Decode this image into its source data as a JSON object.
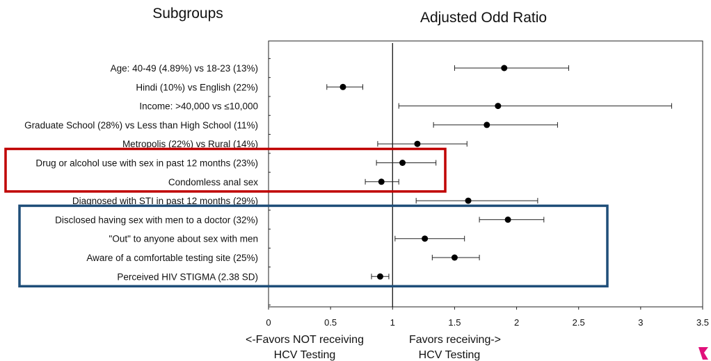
{
  "headings": {
    "left": "Subgroups",
    "right": "Adjusted Odd Ratio"
  },
  "favors": {
    "left_line1": "<-Favors NOT receiving",
    "left_line2": "HCV Testing",
    "right_line1": "Favors receiving->",
    "right_line2": "HCV Testing"
  },
  "colors": {
    "red_box": "#c00000",
    "blue_box": "#1f4e79",
    "corner_mark": "#e0107a"
  },
  "chart_data": {
    "type": "forest",
    "title": "Adjusted Odd Ratio",
    "xlim": [
      0,
      3.5
    ],
    "x_ticks": [
      "0",
      "0.5",
      "1",
      "1.5",
      "2",
      "2.5",
      "3",
      "3.5"
    ],
    "x_tick_values": [
      0,
      0.5,
      1,
      1.5,
      2,
      2.5,
      3,
      3.5
    ],
    "reference_line": 1,
    "rows": [
      {
        "label": "Age: 40-49 (4.89%) vs 18-23  (13%)",
        "or": 1.9,
        "lower": 1.5,
        "upper": 2.42
      },
      {
        "label": "Hindi (10%) vs English (22%)",
        "or": 0.6,
        "lower": 0.47,
        "upper": 0.76
      },
      {
        "label": "Income: >40,000 vs ≤10,000",
        "or": 1.85,
        "lower": 1.05,
        "upper": 3.25
      },
      {
        "label": "Graduate School (28%) vs Less than High School (11%)",
        "or": 1.76,
        "lower": 1.33,
        "upper": 2.33
      },
      {
        "label": "Metropolis (22%) vs Rural (14%)",
        "or": 1.2,
        "lower": 0.88,
        "upper": 1.6
      },
      {
        "label": "Drug or alcohol use with sex in past 12 months (23%)",
        "or": 1.08,
        "lower": 0.87,
        "upper": 1.35
      },
      {
        "label": "Condomless anal sex",
        "or": 0.91,
        "lower": 0.78,
        "upper": 1.05
      },
      {
        "label": "Diagnosed with STI in past 12 months (29%)",
        "or": 1.61,
        "lower": 1.19,
        "upper": 2.17
      },
      {
        "label": "Disclosed having sex with men to a doctor (32%)",
        "or": 1.93,
        "lower": 1.7,
        "upper": 2.22
      },
      {
        "label": "\"Out\" to anyone about sex with men",
        "or": 1.26,
        "lower": 1.02,
        "upper": 1.58
      },
      {
        "label": "Aware of a comfortable testing site (25%)",
        "or": 1.5,
        "lower": 1.32,
        "upper": 1.7
      },
      {
        "label": "Perceived HIV STIGMA (2.38 SD)",
        "or": 0.9,
        "lower": 0.83,
        "upper": 0.97
      }
    ],
    "highlight_groups": [
      {
        "rows": [
          5,
          6
        ],
        "color": "red"
      },
      {
        "rows": [
          8,
          9,
          10,
          11
        ],
        "color": "blue"
      }
    ]
  }
}
